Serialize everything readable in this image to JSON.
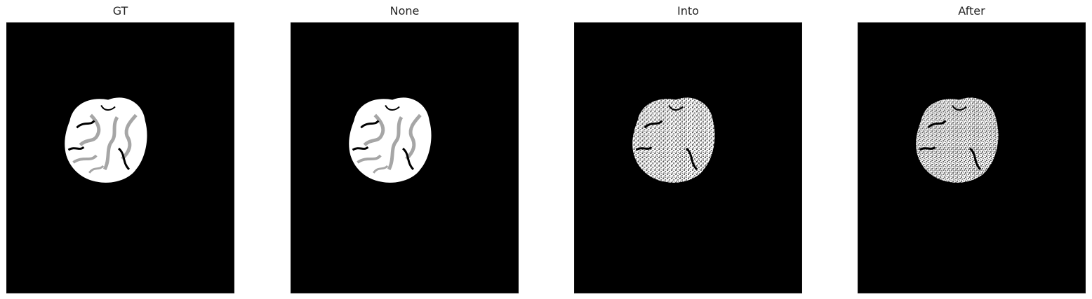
{
  "figure": {
    "background_color": "#ffffff",
    "image_background_color": "#000000",
    "panels": [
      {
        "title": "GT",
        "style": "ground-truth"
      },
      {
        "title": "None",
        "style": "ground-truth"
      },
      {
        "title": "Into",
        "style": "noisy"
      },
      {
        "title": "After",
        "style": "noisy"
      }
    ]
  },
  "colors": {
    "white_matter": "#ffffff",
    "gray_matter": "#a6a6a6",
    "noise_dark": "#555555"
  }
}
